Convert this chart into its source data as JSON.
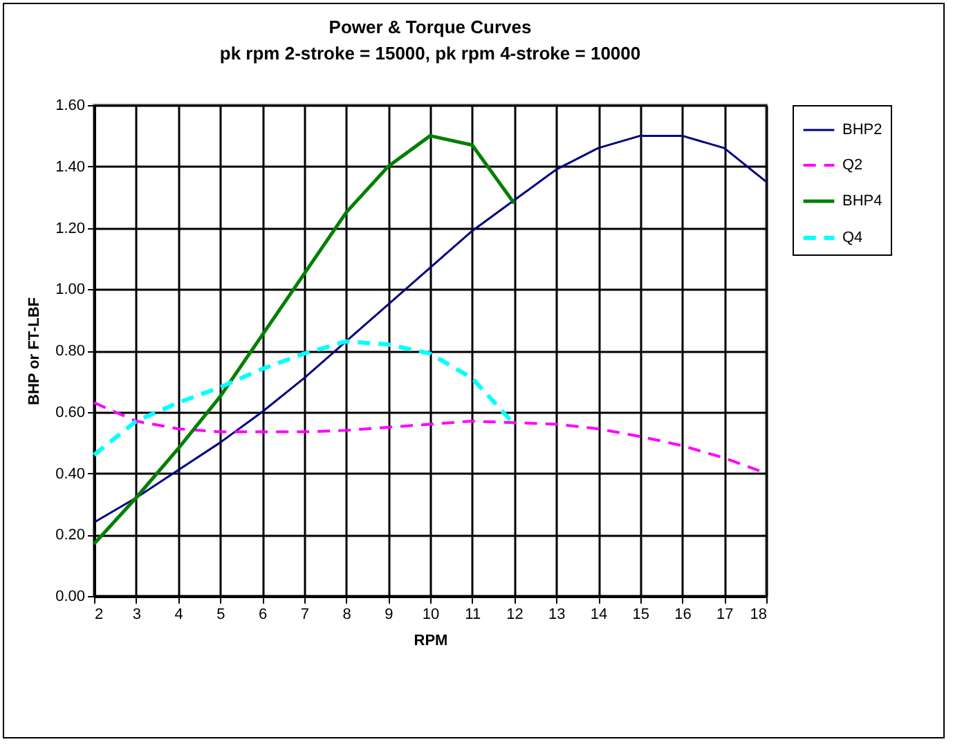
{
  "chart_data": {
    "type": "line",
    "title": "Power & Torque Curves",
    "subtitle": "pk rpm 2-stroke = 15000, pk rpm  4-stroke = 10000",
    "xlabel": "RPM",
    "ylabel": "BHP or FT-LBF",
    "x": [
      2,
      3,
      4,
      5,
      6,
      7,
      8,
      9,
      10,
      11,
      12,
      13,
      14,
      15,
      16,
      17,
      18
    ],
    "series": [
      {
        "name": "BHP2",
        "color": "#000080",
        "line_style": "solid",
        "values": [
          0.24,
          0.32,
          0.41,
          0.5,
          0.6,
          0.71,
          0.83,
          0.95,
          1.07,
          1.19,
          1.29,
          1.39,
          1.46,
          1.5,
          1.5,
          1.46,
          1.35
        ]
      },
      {
        "name": "Q2",
        "color": "#ff00ff",
        "line_style": "dashed",
        "values": [
          0.63,
          0.57,
          0.545,
          0.535,
          0.535,
          0.535,
          0.54,
          0.55,
          0.56,
          0.57,
          0.565,
          0.56,
          0.545,
          0.52,
          0.49,
          0.45,
          0.4
        ]
      },
      {
        "name": "BHP4",
        "color": "#008000",
        "line_style": "solid",
        "values": [
          0.17,
          0.32,
          0.48,
          0.65,
          0.85,
          1.05,
          1.25,
          1.4,
          1.5,
          1.47,
          1.28,
          null,
          null,
          null,
          null,
          null,
          null
        ]
      },
      {
        "name": "Q4",
        "color": "#00ffff",
        "line_style": "dashed",
        "values": [
          0.46,
          0.57,
          0.63,
          0.68,
          0.74,
          0.79,
          0.83,
          0.82,
          0.79,
          0.71,
          0.56,
          null,
          null,
          null,
          null,
          null,
          null
        ]
      }
    ],
    "xlim": [
      2,
      18
    ],
    "xticks": [
      2,
      3,
      4,
      5,
      6,
      7,
      8,
      9,
      10,
      11,
      12,
      13,
      14,
      15,
      16,
      17,
      18
    ],
    "ylim": [
      0,
      1.6
    ],
    "yticks": [
      {
        "value": 0,
        "label": "0.00"
      },
      {
        "value": 0.2,
        "label": "0.20"
      },
      {
        "value": 0.4,
        "label": "0.40"
      },
      {
        "value": 0.6,
        "label": "0.60"
      },
      {
        "value": 0.8,
        "label": "0.80"
      },
      {
        "value": 1.0,
        "label": "1.00"
      },
      {
        "value": 1.2,
        "label": "1.20"
      },
      {
        "value": 1.4,
        "label": "1.40"
      },
      {
        "value": 1.6,
        "label": "1.60"
      }
    ],
    "grid": true,
    "legend": "right"
  }
}
